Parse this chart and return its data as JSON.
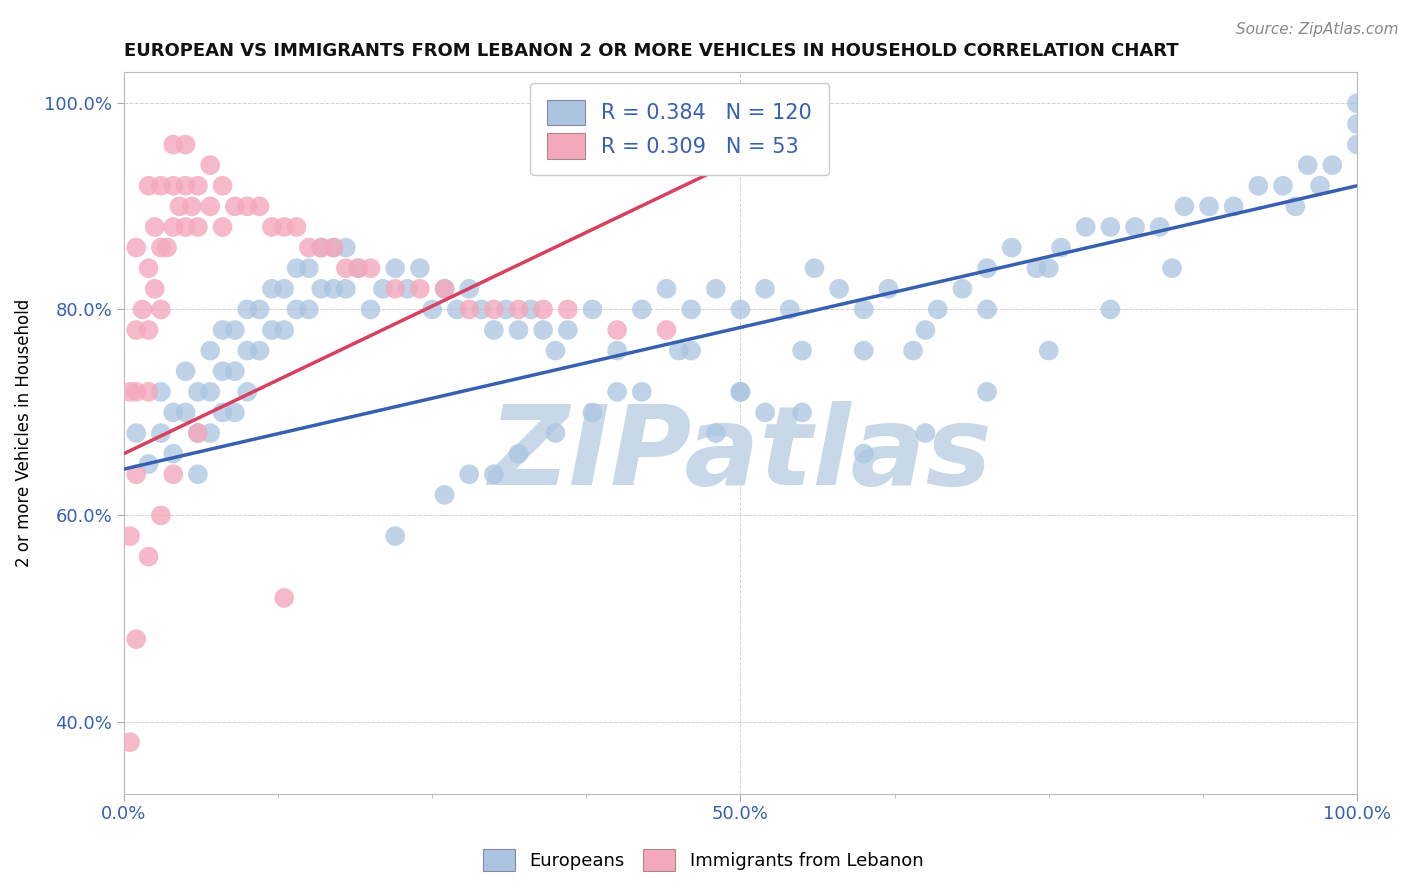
{
  "title": "EUROPEAN VS IMMIGRANTS FROM LEBANON 2 OR MORE VEHICLES IN HOUSEHOLD CORRELATION CHART",
  "source": "Source: ZipAtlas.com",
  "ylabel": "2 or more Vehicles in Household",
  "xlim": [
    0.0,
    1.0
  ],
  "ylim": [
    0.33,
    1.03
  ],
  "yticks": [
    0.4,
    0.6,
    0.8,
    1.0
  ],
  "ytick_labels": [
    "40.0%",
    "60.0%",
    "80.0%",
    "100.0%"
  ],
  "blue_color": "#aac4e0",
  "pink_color": "#f4a8bc",
  "blue_line_color": "#3860b0",
  "pink_line_color": "#d84060",
  "legend_r_blue": "0.384",
  "legend_n_blue": "120",
  "legend_r_pink": "0.309",
  "legend_n_pink": "53",
  "watermark": "ZIPatlas",
  "watermark_color": "#c8d8e8",
  "grid_color": "#cccccc",
  "background_color": "#ffffff",
  "blue_x": [
    0.01,
    0.02,
    0.03,
    0.03,
    0.04,
    0.04,
    0.05,
    0.05,
    0.06,
    0.06,
    0.06,
    0.07,
    0.07,
    0.07,
    0.08,
    0.08,
    0.08,
    0.09,
    0.09,
    0.09,
    0.1,
    0.1,
    0.1,
    0.11,
    0.11,
    0.12,
    0.12,
    0.13,
    0.13,
    0.14,
    0.14,
    0.15,
    0.15,
    0.16,
    0.16,
    0.17,
    0.17,
    0.18,
    0.18,
    0.19,
    0.2,
    0.21,
    0.22,
    0.23,
    0.24,
    0.25,
    0.26,
    0.27,
    0.28,
    0.29,
    0.3,
    0.31,
    0.32,
    0.33,
    0.34,
    0.35,
    0.36,
    0.38,
    0.4,
    0.42,
    0.44,
    0.46,
    0.48,
    0.5,
    0.52,
    0.54,
    0.56,
    0.58,
    0.6,
    0.62,
    0.64,
    0.66,
    0.68,
    0.7,
    0.72,
    0.74,
    0.76,
    0.78,
    0.8,
    0.82,
    0.84,
    0.86,
    0.88,
    0.9,
    0.92,
    0.94,
    0.96,
    0.98,
    1.0,
    1.0,
    1.0,
    0.95,
    0.97,
    0.5,
    0.55,
    0.48,
    0.52,
    0.6,
    0.65,
    0.7,
    0.75,
    0.3,
    0.35,
    0.4,
    0.45,
    0.22,
    0.26,
    0.28,
    0.32,
    0.38,
    0.42,
    0.46,
    0.5,
    0.55,
    0.6,
    0.65,
    0.7,
    0.75,
    0.8,
    0.85
  ],
  "blue_y": [
    0.68,
    0.65,
    0.72,
    0.68,
    0.7,
    0.66,
    0.74,
    0.7,
    0.72,
    0.68,
    0.64,
    0.76,
    0.72,
    0.68,
    0.78,
    0.74,
    0.7,
    0.78,
    0.74,
    0.7,
    0.8,
    0.76,
    0.72,
    0.8,
    0.76,
    0.82,
    0.78,
    0.82,
    0.78,
    0.84,
    0.8,
    0.84,
    0.8,
    0.86,
    0.82,
    0.86,
    0.82,
    0.86,
    0.82,
    0.84,
    0.8,
    0.82,
    0.84,
    0.82,
    0.84,
    0.8,
    0.82,
    0.8,
    0.82,
    0.8,
    0.78,
    0.8,
    0.78,
    0.8,
    0.78,
    0.76,
    0.78,
    0.8,
    0.76,
    0.8,
    0.82,
    0.8,
    0.82,
    0.8,
    0.82,
    0.8,
    0.84,
    0.82,
    0.8,
    0.82,
    0.76,
    0.8,
    0.82,
    0.84,
    0.86,
    0.84,
    0.86,
    0.88,
    0.88,
    0.88,
    0.88,
    0.9,
    0.9,
    0.9,
    0.92,
    0.92,
    0.94,
    0.94,
    0.96,
    0.98,
    1.0,
    0.9,
    0.92,
    0.72,
    0.76,
    0.68,
    0.7,
    0.76,
    0.78,
    0.8,
    0.84,
    0.64,
    0.68,
    0.72,
    0.76,
    0.58,
    0.62,
    0.64,
    0.66,
    0.7,
    0.72,
    0.76,
    0.72,
    0.7,
    0.66,
    0.68,
    0.72,
    0.76,
    0.8,
    0.84
  ],
  "pink_x": [
    0.005,
    0.005,
    0.01,
    0.01,
    0.01,
    0.01,
    0.015,
    0.02,
    0.02,
    0.02,
    0.02,
    0.025,
    0.025,
    0.03,
    0.03,
    0.03,
    0.035,
    0.04,
    0.04,
    0.04,
    0.045,
    0.05,
    0.05,
    0.05,
    0.055,
    0.06,
    0.06,
    0.07,
    0.07,
    0.08,
    0.08,
    0.09,
    0.1,
    0.11,
    0.12,
    0.13,
    0.14,
    0.15,
    0.16,
    0.17,
    0.18,
    0.19,
    0.2,
    0.22,
    0.24,
    0.26,
    0.28,
    0.3,
    0.32,
    0.34,
    0.36,
    0.4,
    0.44
  ],
  "pink_y": [
    0.58,
    0.72,
    0.64,
    0.72,
    0.78,
    0.86,
    0.8,
    0.72,
    0.78,
    0.84,
    0.92,
    0.82,
    0.88,
    0.8,
    0.86,
    0.92,
    0.86,
    0.88,
    0.92,
    0.96,
    0.9,
    0.88,
    0.92,
    0.96,
    0.9,
    0.88,
    0.92,
    0.9,
    0.94,
    0.88,
    0.92,
    0.9,
    0.9,
    0.9,
    0.88,
    0.88,
    0.88,
    0.86,
    0.86,
    0.86,
    0.84,
    0.84,
    0.84,
    0.82,
    0.82,
    0.82,
    0.8,
    0.8,
    0.8,
    0.8,
    0.8,
    0.78,
    0.78
  ],
  "pink_x_outliers": [
    0.005,
    0.01,
    0.02,
    0.03,
    0.04,
    0.06,
    0.13
  ],
  "pink_y_outliers": [
    0.38,
    0.48,
    0.56,
    0.6,
    0.64,
    0.68,
    0.52
  ],
  "blue_line_x": [
    0.0,
    1.0
  ],
  "blue_line_y": [
    0.645,
    0.92
  ],
  "pink_line_x": [
    0.0,
    0.55
  ],
  "pink_line_y": [
    0.66,
    0.975
  ]
}
